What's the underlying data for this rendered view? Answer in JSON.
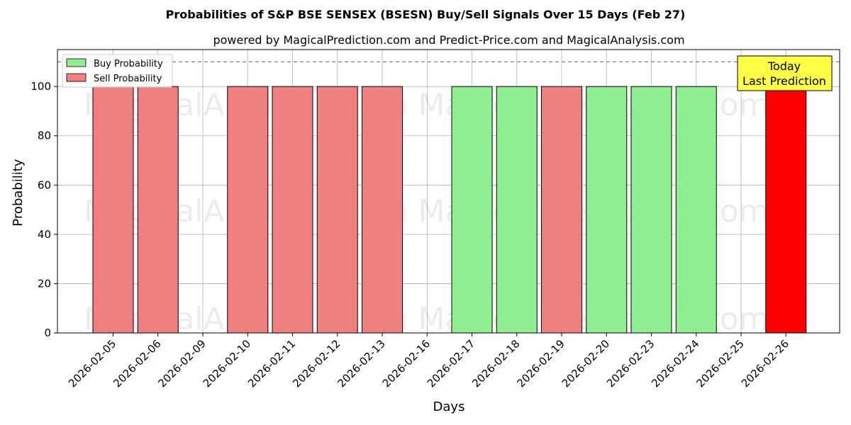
{
  "chart_data": {
    "type": "bar",
    "title": "Probabilities of S&P BSE SENSEX (BSESN) Buy/Sell Signals Over 15 Days (Feb 27)",
    "subtitle": "powered by MagicalPrediction.com and Predict-Price.com and MagicalAnalysis.com",
    "xlabel": "Days",
    "ylabel": "Probability",
    "ylim": [
      0,
      115
    ],
    "yticks": [
      0,
      20,
      40,
      60,
      80,
      100
    ],
    "grid": true,
    "legend_placement": "top-left",
    "reference_line": 110,
    "categories": [
      "2026-02-05",
      "2026-02-06",
      "2026-02-09",
      "2026-02-10",
      "2026-02-11",
      "2026-02-12",
      "2026-02-13",
      "2026-02-16",
      "2026-02-17",
      "2026-02-18",
      "2026-02-19",
      "2026-02-20",
      "2026-02-23",
      "2026-02-24",
      "2026-02-25",
      "2026-02-26"
    ],
    "bars": [
      {
        "date": "2026-02-05",
        "signal": "sell",
        "value": 100
      },
      {
        "date": "2026-02-06",
        "signal": "sell",
        "value": 100
      },
      {
        "date": "2026-02-10",
        "signal": "sell",
        "value": 100
      },
      {
        "date": "2026-02-11",
        "signal": "sell",
        "value": 100
      },
      {
        "date": "2026-02-12",
        "signal": "sell",
        "value": 100
      },
      {
        "date": "2026-02-13",
        "signal": "sell",
        "value": 100
      },
      {
        "date": "2026-02-17",
        "signal": "buy",
        "value": 100
      },
      {
        "date": "2026-02-18",
        "signal": "buy",
        "value": 100
      },
      {
        "date": "2026-02-19",
        "signal": "sell",
        "value": 100
      },
      {
        "date": "2026-02-20",
        "signal": "buy",
        "value": 100
      },
      {
        "date": "2026-02-23",
        "signal": "buy",
        "value": 100
      },
      {
        "date": "2026-02-24",
        "signal": "buy",
        "value": 100
      },
      {
        "date": "2026-02-26",
        "signal": "today-sell",
        "value": 100
      }
    ],
    "series": [
      {
        "name": "Buy Probability",
        "key": "buy",
        "color": "#90ee90"
      },
      {
        "name": "Sell Probability",
        "key": "sell",
        "color": "#f08080"
      }
    ],
    "today_color": "#ff0000",
    "annotation": {
      "line1": "Today",
      "line2": "Last Prediction",
      "color": "#ffff44"
    },
    "watermarks": [
      "MagicalAnalysis.com",
      "MagicalPrediction.com"
    ]
  }
}
